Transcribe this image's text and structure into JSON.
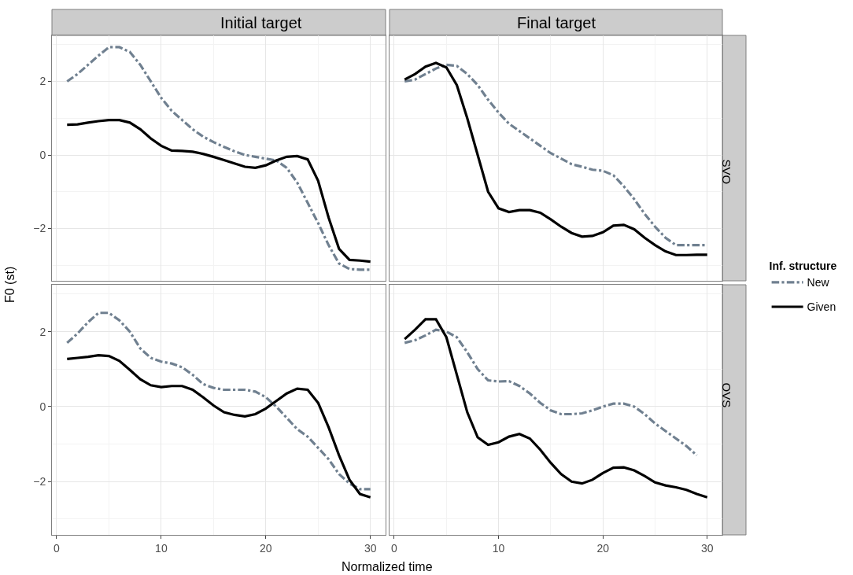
{
  "chart_data": [
    {
      "type": "line",
      "title": "Initial target",
      "ylabel": "F0 (st)",
      "legend_title": "Inf. structure",
      "legend": "right",
      "grid": true,
      "tick_labels": "y",
      "xlim": [
        -0.45,
        31.45
      ],
      "xticks": [
        0,
        10,
        20,
        30
      ],
      "ylim": [
        -3.42,
        3.25
      ],
      "yticks": [
        {
          "value": -2,
          "label": "−2"
        },
        0,
        2
      ],
      "x": [
        1,
        2,
        3,
        4,
        5,
        6,
        7,
        8,
        9,
        10,
        11,
        12,
        13,
        14,
        15,
        16,
        17,
        18,
        19,
        20,
        21,
        22,
        23,
        24,
        25,
        26,
        27,
        28,
        29,
        30
      ],
      "series": [
        {
          "name": "New",
          "color": "#708090",
          "line_style": "dashdot",
          "values": [
            2.0,
            2.2,
            2.45,
            2.7,
            2.93,
            2.93,
            2.8,
            2.45,
            2.0,
            1.55,
            1.2,
            0.95,
            0.7,
            0.5,
            0.35,
            0.22,
            0.1,
            0.0,
            -0.05,
            -0.1,
            -0.15,
            -0.35,
            -0.75,
            -1.3,
            -1.85,
            -2.45,
            -2.95,
            -3.1,
            -3.12,
            -3.12
          ]
        },
        {
          "name": "Given",
          "color": "#000000",
          "line_style": "solid",
          "values": [
            0.82,
            0.83,
            0.88,
            0.92,
            0.95,
            0.95,
            0.88,
            0.7,
            0.45,
            0.25,
            0.12,
            0.11,
            0.09,
            0.03,
            -0.05,
            -0.14,
            -0.23,
            -0.32,
            -0.35,
            -0.28,
            -0.15,
            -0.05,
            -0.03,
            -0.12,
            -0.7,
            -1.7,
            -2.55,
            -2.85,
            -2.87,
            -2.9
          ]
        }
      ]
    },
    {
      "type": "line",
      "title": "Final target",
      "y2label": "SVO",
      "grid": true,
      "tick_labels": false,
      "xlim": [
        -0.45,
        31.45
      ],
      "xticks": [
        0,
        10,
        20,
        30
      ],
      "ylim": [
        -3.42,
        3.25
      ],
      "yticks": [
        -2,
        0,
        2
      ],
      "x": [
        1,
        2,
        3,
        4,
        5,
        6,
        7,
        8,
        9,
        10,
        11,
        12,
        13,
        14,
        15,
        16,
        17,
        18,
        19,
        20,
        21,
        22,
        23,
        24,
        25,
        26,
        27,
        28,
        29,
        30
      ],
      "series": [
        {
          "color": "#708090",
          "line_style": "dashdot",
          "values": [
            2.0,
            2.05,
            2.2,
            2.35,
            2.45,
            2.42,
            2.2,
            1.9,
            1.5,
            1.15,
            0.85,
            0.65,
            0.45,
            0.25,
            0.05,
            -0.1,
            -0.25,
            -0.32,
            -0.4,
            -0.43,
            -0.55,
            -0.85,
            -1.2,
            -1.6,
            -1.95,
            -2.25,
            -2.45,
            -2.45,
            -2.45,
            -2.45
          ]
        },
        {
          "color": "#000000",
          "line_style": "solid",
          "values": [
            2.05,
            2.2,
            2.4,
            2.5,
            2.38,
            1.9,
            1.0,
            0.0,
            -1.0,
            -1.45,
            -1.55,
            -1.5,
            -1.5,
            -1.57,
            -1.75,
            -1.95,
            -2.12,
            -2.22,
            -2.2,
            -2.1,
            -1.92,
            -1.9,
            -2.02,
            -2.25,
            -2.45,
            -2.62,
            -2.72,
            -2.72,
            -2.71,
            -2.71
          ]
        }
      ]
    },
    {
      "type": "line",
      "xlabel": "Normalized time",
      "grid": true,
      "xlim": [
        -0.45,
        31.45
      ],
      "xticks": [
        0,
        10,
        20,
        30
      ],
      "ylim": [
        -3.42,
        3.25
      ],
      "yticks": [
        {
          "value": -2,
          "label": "−2"
        },
        0,
        2
      ],
      "x": [
        1,
        2,
        3,
        4,
        5,
        6,
        7,
        8,
        9,
        10,
        11,
        12,
        13,
        14,
        15,
        16,
        17,
        18,
        19,
        20,
        21,
        22,
        23,
        24,
        25,
        26,
        27,
        28,
        29,
        30
      ],
      "series": [
        {
          "color": "#708090",
          "line_style": "dashdot",
          "values": [
            1.7,
            1.95,
            2.25,
            2.5,
            2.5,
            2.3,
            2.0,
            1.55,
            1.3,
            1.2,
            1.15,
            1.05,
            0.85,
            0.6,
            0.5,
            0.45,
            0.45,
            0.45,
            0.4,
            0.25,
            0.0,
            -0.3,
            -0.6,
            -0.8,
            -1.1,
            -1.4,
            -1.8,
            -2.05,
            -2.2,
            -2.2
          ]
        },
        {
          "color": "#000000",
          "line_style": "solid",
          "values": [
            1.27,
            1.3,
            1.33,
            1.37,
            1.35,
            1.22,
            0.98,
            0.73,
            0.57,
            0.52,
            0.55,
            0.55,
            0.45,
            0.25,
            0.03,
            -0.15,
            -0.22,
            -0.26,
            -0.2,
            -0.05,
            0.15,
            0.35,
            0.48,
            0.45,
            0.1,
            -0.55,
            -1.3,
            -1.95,
            -2.33,
            -2.42
          ]
        }
      ]
    },
    {
      "type": "line",
      "y2label": "OVS",
      "grid": true,
      "tick_labels": "x",
      "xlim": [
        -0.45,
        31.45
      ],
      "xticks": [
        0,
        10,
        20,
        30
      ],
      "ylim": [
        -3.42,
        3.25
      ],
      "yticks": [
        -2,
        0,
        2
      ],
      "x": [
        1,
        2,
        3,
        4,
        5,
        6,
        7,
        8,
        9,
        10,
        11,
        12,
        13,
        14,
        15,
        16,
        17,
        18,
        19,
        20,
        21,
        22,
        23,
        24,
        25,
        26,
        27,
        28,
        29,
        30
      ],
      "series": [
        {
          "color": "#708090",
          "line_style": "dashdot",
          "values": [
            1.7,
            1.77,
            1.9,
            2.05,
            2.0,
            1.85,
            1.45,
            1.0,
            0.7,
            0.67,
            0.68,
            0.55,
            0.35,
            0.1,
            -0.1,
            -0.2,
            -0.2,
            -0.18,
            -0.1,
            0.0,
            0.08,
            0.08,
            0.0,
            -0.2,
            -0.45,
            -0.65,
            -0.85,
            -1.05,
            -1.3,
            null
          ]
        },
        {
          "color": "#000000",
          "line_style": "solid",
          "values": [
            1.8,
            2.05,
            2.33,
            2.33,
            1.85,
            0.85,
            -0.15,
            -0.82,
            -1.02,
            -0.95,
            -0.8,
            -0.73,
            -0.85,
            -1.15,
            -1.5,
            -1.8,
            -2.0,
            -2.05,
            -1.95,
            -1.77,
            -1.63,
            -1.62,
            -1.7,
            -1.85,
            -2.02,
            -2.1,
            -2.15,
            -2.22,
            -2.33,
            -2.42
          ]
        }
      ]
    }
  ]
}
